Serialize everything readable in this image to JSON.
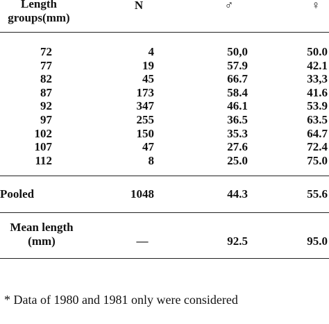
{
  "table": {
    "header": [
      "Length groups(mm)",
      "N",
      "♂",
      "♀"
    ],
    "rows": [
      [
        "72",
        "4",
        "50,0",
        "50.0"
      ],
      [
        "77",
        "19",
        "57.9",
        "42.1"
      ],
      [
        "82",
        "45",
        "66.7",
        "33,3"
      ],
      [
        "87",
        "173",
        "58.4",
        "41.6"
      ],
      [
        "92",
        "347",
        "46.1",
        "53.9"
      ],
      [
        "97",
        "255",
        "36.5",
        "63.5"
      ],
      [
        "102",
        "150",
        "35.3",
        "64.7"
      ],
      [
        "107",
        "47",
        "27.6",
        "72.4"
      ],
      [
        "112",
        "8",
        "25.0",
        "75.0"
      ]
    ],
    "pooled": [
      "Pooled",
      "1048",
      "44.3",
      "55.6"
    ],
    "mean": [
      "Mean length (mm)",
      "—",
      "92.5",
      "95.0"
    ]
  },
  "footnote": "* Data of 1980 and 1981 only were considered"
}
